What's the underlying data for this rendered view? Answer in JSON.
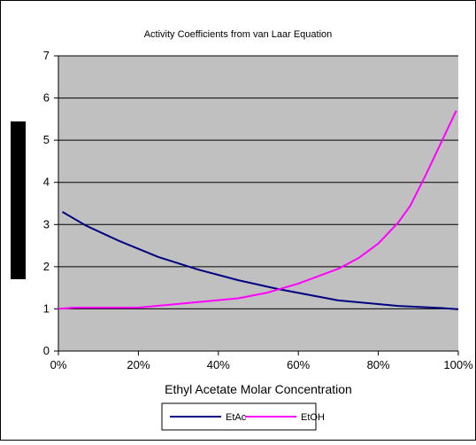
{
  "chart_data": {
    "type": "line",
    "title": "Activity Coefficients from van Laar Equation",
    "xlabel": "Ethyl Acetate Molar Concentration",
    "ylabel": "",
    "xlim": [
      0,
      100
    ],
    "ylim": [
      0,
      7
    ],
    "x_ticks": [
      "0%",
      "20%",
      "40%",
      "60%",
      "80%",
      "100%"
    ],
    "y_ticks": [
      "0",
      "1",
      "2",
      "3",
      "4",
      "5",
      "6",
      "7"
    ],
    "grid": true,
    "legend": "bottom",
    "plot_background": "#c0c0c0",
    "series": [
      {
        "name": "EtAc",
        "color": "#000080",
        "x": [
          1,
          7,
          15,
          25,
          35,
          45,
          55,
          70,
          85,
          96,
          100
        ],
        "y": [
          3.3,
          2.97,
          2.62,
          2.23,
          1.93,
          1.68,
          1.47,
          1.2,
          1.07,
          1.02,
          0.99
        ]
      },
      {
        "name": "EtOH",
        "color": "#ff00ff",
        "x": [
          0,
          4,
          20,
          45,
          52,
          60,
          70,
          75,
          80,
          85,
          88,
          92,
          96,
          99.5
        ],
        "y": [
          1.0,
          1.03,
          1.03,
          1.25,
          1.38,
          1.6,
          1.95,
          2.2,
          2.55,
          3.05,
          3.45,
          4.2,
          5.0,
          5.7
        ]
      }
    ]
  }
}
